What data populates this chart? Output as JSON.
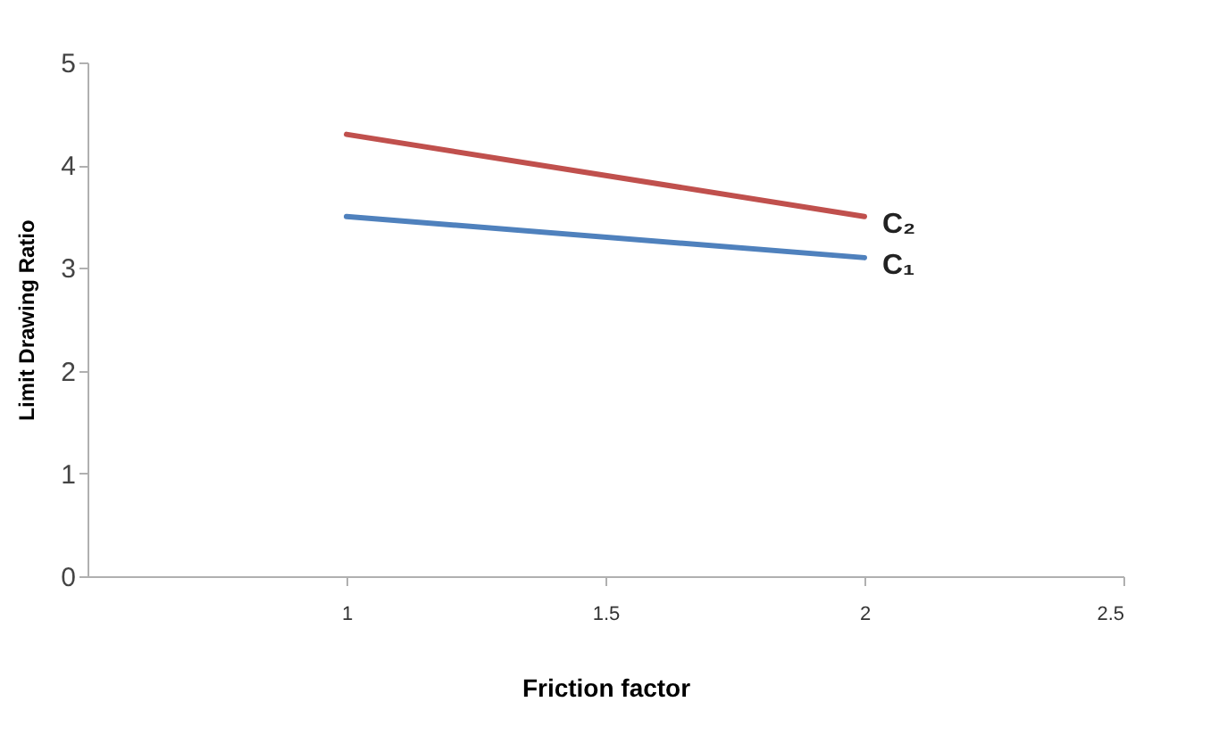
{
  "chart_data": {
    "type": "line",
    "xlabel": "Friction factor",
    "ylabel": "Limit Drawing Ratio",
    "x": [
      1,
      2
    ],
    "series": [
      {
        "name": "C₂",
        "color": "#c0504d",
        "values": [
          4.3,
          3.5
        ]
      },
      {
        "name": "C₁",
        "color": "#4f81bd",
        "values": [
          3.5,
          3.1
        ]
      }
    ],
    "xlim": [
      0.5,
      2.5
    ],
    "xticks": [
      1,
      1.5,
      2,
      2.5
    ],
    "ylim": [
      0,
      5
    ],
    "yticks": [
      0,
      1,
      2,
      3,
      4,
      5
    ],
    "grid": false,
    "legend": false,
    "marker": "none",
    "line_style": "solid"
  }
}
